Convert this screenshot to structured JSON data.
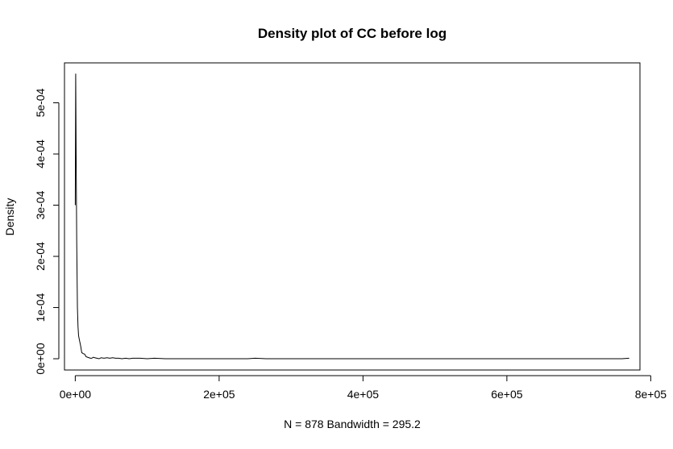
{
  "chart_data": {
    "type": "line",
    "title": "Density plot of CC before log",
    "xlabel": "N = 878   Bandwidth = 295.2",
    "ylabel": "Density",
    "xlim": [
      -15000,
      785000
    ],
    "ylim": [
      -2.2e-05,
      0.000578
    ],
    "x_ticks": [
      {
        "value": 0,
        "label": "0e+00"
      },
      {
        "value": 200000,
        "label": "2e+05"
      },
      {
        "value": 400000,
        "label": "4e+05"
      },
      {
        "value": 600000,
        "label": "6e+05"
      },
      {
        "value": 800000,
        "label": "8e+05"
      }
    ],
    "y_ticks": [
      {
        "value": 0,
        "label": "0e+00"
      },
      {
        "value": 0.0001,
        "label": "1e-04"
      },
      {
        "value": 0.0002,
        "label": "2e-04"
      },
      {
        "value": 0.0003,
        "label": "3e-04"
      },
      {
        "value": 0.0004,
        "label": "4e-04"
      },
      {
        "value": 0.0005,
        "label": "5e-04"
      }
    ],
    "series": [
      {
        "color": "#000000",
        "x": [
          0,
          600,
          1200,
          2000,
          3000,
          3800,
          4600,
          6000,
          7500,
          9000,
          11000,
          13000,
          15000,
          17000,
          19000,
          21000,
          23000,
          25000,
          27000,
          30000,
          33000,
          36000,
          40000,
          44000,
          48000,
          52000,
          56000,
          60000,
          65000,
          70000,
          75000,
          80000,
          90000,
          100000,
          110000,
          125000,
          140000,
          170000,
          200000,
          240000,
          250000,
          265000,
          300000,
          400000,
          500000,
          600000,
          700000,
          760000,
          770000
        ],
        "y": [
          0.0003,
          0.000557,
          0.0004,
          0.00023,
          0.0001,
          6.3e-05,
          4.5e-05,
          3.5e-05,
          2.5e-05,
          1.2e-05,
          1e-05,
          9e-06,
          4e-06,
          3e-06,
          2e-06,
          1e-06,
          1e-06,
          3e-06,
          2e-06,
          1e-06,
          0.0,
          2e-06,
          1e-06,
          2e-06,
          1e-06,
          2e-06,
          1e-06,
          1e-06,
          0.0,
          1e-06,
          0.0,
          1e-06,
          1e-06,
          0.0,
          1e-06,
          0.0,
          0.0,
          0.0,
          0.0,
          0.0,
          1e-06,
          0.0,
          0.0,
          0.0,
          0.0,
          0.0,
          0.0,
          0.0,
          1e-06
        ]
      }
    ],
    "grid": false,
    "legend": "none"
  }
}
